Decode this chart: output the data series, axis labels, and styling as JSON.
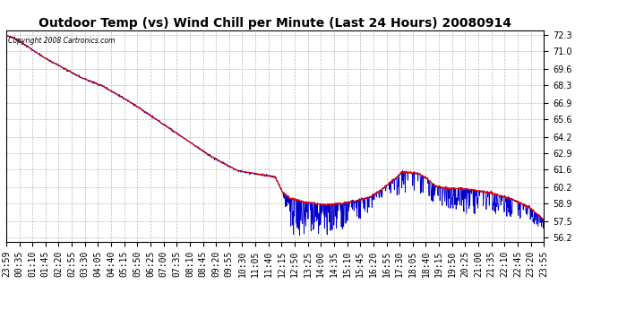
{
  "title": "Outdoor Temp (vs) Wind Chill per Minute (Last 24 Hours) 20080914",
  "copyright_text": "Copyright 2008 Cartronics.com",
  "yticks": [
    56.2,
    57.5,
    58.9,
    60.2,
    61.6,
    62.9,
    64.2,
    65.6,
    66.9,
    68.3,
    69.6,
    71.0,
    72.3
  ],
  "ylim": [
    55.85,
    72.65
  ],
  "bg_color": "#ffffff",
  "grid_color": "#bbbbbb",
  "temp_color": "#dd0000",
  "wind_color": "#0000cc",
  "title_fontsize": 10,
  "tick_fontsize": 7,
  "xtick_labels": [
    "23:59",
    "00:35",
    "01:10",
    "01:45",
    "02:20",
    "02:55",
    "03:30",
    "04:05",
    "04:40",
    "05:15",
    "05:50",
    "06:25",
    "07:00",
    "07:35",
    "08:10",
    "08:45",
    "09:20",
    "09:55",
    "10:30",
    "11:05",
    "11:40",
    "12:15",
    "12:50",
    "13:25",
    "14:00",
    "14:35",
    "15:10",
    "15:45",
    "16:20",
    "16:55",
    "17:30",
    "18:05",
    "18:40",
    "19:15",
    "19:50",
    "20:25",
    "21:00",
    "21:35",
    "22:10",
    "22:45",
    "23:20",
    "23:55"
  ],
  "temp_points_x": [
    0,
    30,
    100,
    200,
    260,
    340,
    420,
    480,
    550,
    620,
    680,
    720,
    740,
    760,
    800,
    850,
    900,
    950,
    980,
    1010,
    1060,
    1100,
    1120,
    1150,
    1180,
    1220,
    1260,
    1300,
    1350,
    1400,
    1439
  ],
  "temp_points_y": [
    72.25,
    71.9,
    70.5,
    68.9,
    68.2,
    66.8,
    65.2,
    64.0,
    62.6,
    61.5,
    61.2,
    61.0,
    59.8,
    59.3,
    59.0,
    58.8,
    58.9,
    59.2,
    59.5,
    60.1,
    61.4,
    61.3,
    61.0,
    60.3,
    60.1,
    60.1,
    59.9,
    59.7,
    59.3,
    58.6,
    57.6
  ]
}
